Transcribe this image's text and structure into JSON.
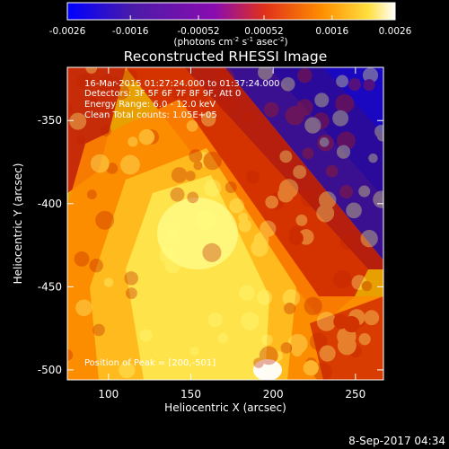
{
  "chart_data": {
    "type": "heatmap",
    "title": "Reconstructed RHESSI Image",
    "xlabel": "Heliocentric X (arcsec)",
    "ylabel": "Heliocentric Y (arcsec)",
    "xlim": [
      75,
      267
    ],
    "ylim": [
      -506,
      -318
    ],
    "xticks": [
      100,
      150,
      200,
      250
    ],
    "yticks": [
      -350,
      -400,
      -450,
      -500
    ],
    "colorbar": {
      "range": [
        -0.0026,
        0.0026
      ],
      "ticks": [
        "-0.0026",
        "-0.0016",
        "-0.00052",
        "0.00052",
        "0.0016",
        "0.0026"
      ],
      "unit_parts": [
        "(photons cm",
        "-2",
        " s",
        "-1",
        " asec",
        "-2",
        ")"
      ]
    },
    "annotations": {
      "time_range": "16-Mar-2015 01:27:24.000 to 01:37:24.000",
      "detectors": "Detectors: 3F 5F 6F 7F 8F 9F, Att 0",
      "energy": "Energy Range: 6.0 - 12.0 keV",
      "clean": "Clean     Total counts: 1.05E+05",
      "peak": "Position of Peak = [200,-501]"
    },
    "peak": [
      200,
      -501
    ],
    "timestamp": "8-Sep-2017 04:34"
  },
  "colors": {
    "background": "#000000",
    "text": "#ffffff"
  }
}
